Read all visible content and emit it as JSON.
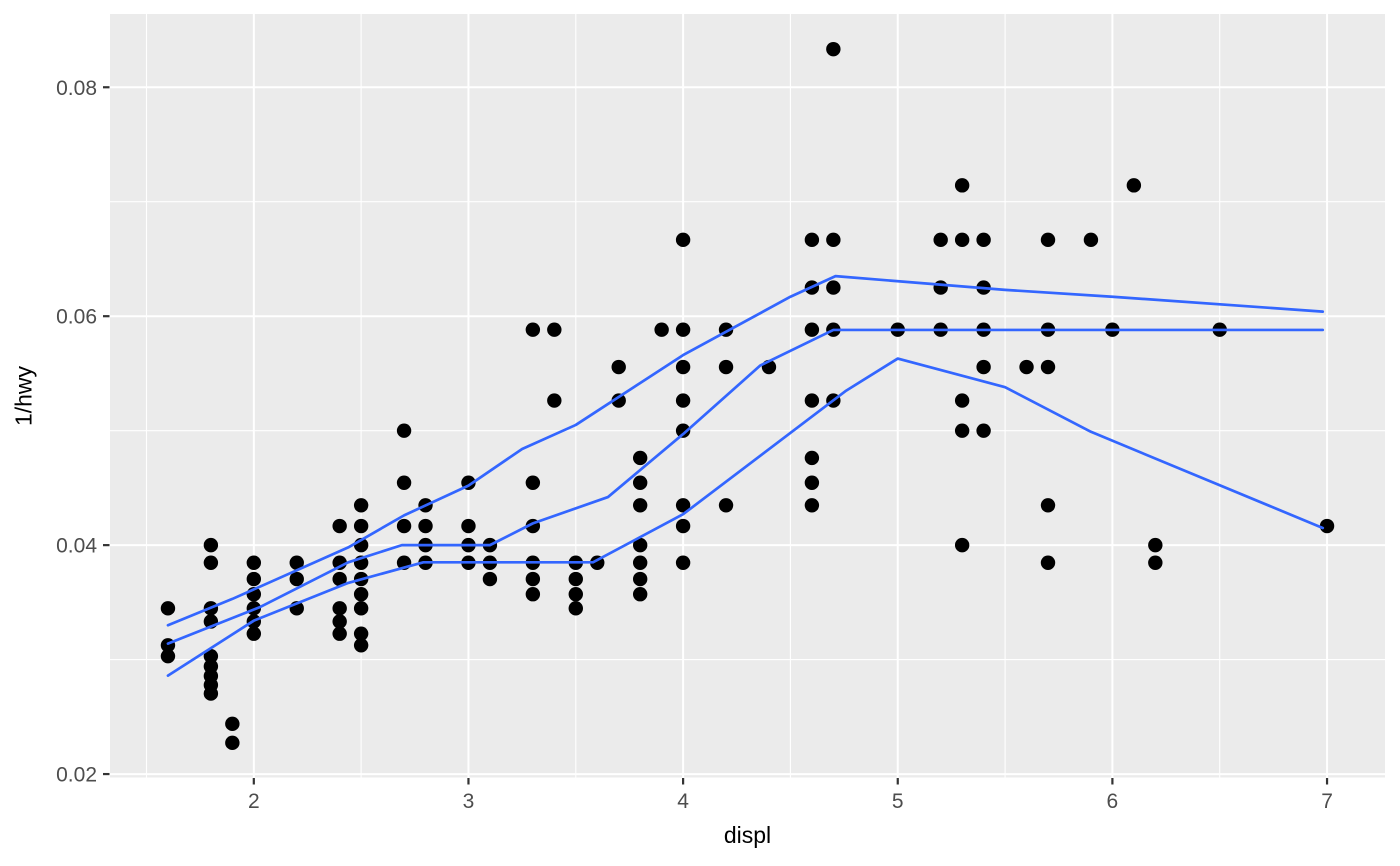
{
  "chart_data": {
    "type": "scatter",
    "title": "",
    "xlabel": "displ",
    "ylabel": "1/hwy",
    "legend": "none",
    "grid": "on",
    "x_domain": [
      1.33,
      7.27
    ],
    "y_domain": [
      0.0197,
      0.0864
    ],
    "x_major_ticks": [
      2,
      3,
      4,
      5,
      6,
      7
    ],
    "x_tick_labels": [
      "2",
      "3",
      "4",
      "5",
      "6",
      "7"
    ],
    "x_minor_ticks": [
      1.5,
      2.5,
      3.5,
      4.5,
      5.5,
      6.5
    ],
    "y_major_ticks": [
      0.02,
      0.04,
      0.06,
      0.08
    ],
    "y_tick_labels": [
      "0.02",
      "0.04",
      "0.06",
      "0.08"
    ],
    "y_minor_ticks": [
      0.03,
      0.05,
      0.07
    ],
    "points": [
      [
        1.6,
        0.03448
      ],
      [
        1.6,
        0.03125
      ],
      [
        1.6,
        0.0303
      ],
      [
        1.8,
        0.04
      ],
      [
        1.8,
        0.03846
      ],
      [
        1.8,
        0.03448
      ],
      [
        1.8,
        0.03333
      ],
      [
        1.8,
        0.0303
      ],
      [
        1.8,
        0.02941
      ],
      [
        1.8,
        0.02857
      ],
      [
        1.8,
        0.02778
      ],
      [
        1.8,
        0.02703
      ],
      [
        1.9,
        0.02439
      ],
      [
        1.9,
        0.02273
      ],
      [
        2.0,
        0.03846
      ],
      [
        2.0,
        0.03704
      ],
      [
        2.0,
        0.03571
      ],
      [
        2.0,
        0.03448
      ],
      [
        2.0,
        0.03333
      ],
      [
        2.0,
        0.03226
      ],
      [
        2.2,
        0.03846
      ],
      [
        2.2,
        0.03704
      ],
      [
        2.2,
        0.03448
      ],
      [
        2.4,
        0.04167
      ],
      [
        2.4,
        0.03846
      ],
      [
        2.4,
        0.03704
      ],
      [
        2.4,
        0.03448
      ],
      [
        2.4,
        0.03333
      ],
      [
        2.4,
        0.03226
      ],
      [
        2.5,
        0.04348
      ],
      [
        2.5,
        0.04167
      ],
      [
        2.5,
        0.04
      ],
      [
        2.5,
        0.03846
      ],
      [
        2.5,
        0.03704
      ],
      [
        2.5,
        0.03571
      ],
      [
        2.5,
        0.03448
      ],
      [
        2.5,
        0.03226
      ],
      [
        2.5,
        0.03125
      ],
      [
        2.7,
        0.05
      ],
      [
        2.7,
        0.04545
      ],
      [
        2.7,
        0.04167
      ],
      [
        2.7,
        0.03846
      ],
      [
        2.8,
        0.04348
      ],
      [
        2.8,
        0.04167
      ],
      [
        2.8,
        0.04
      ],
      [
        2.8,
        0.03846
      ],
      [
        3.0,
        0.04545
      ],
      [
        3.0,
        0.04167
      ],
      [
        3.0,
        0.04
      ],
      [
        3.0,
        0.03846
      ],
      [
        3.1,
        0.04
      ],
      [
        3.1,
        0.03846
      ],
      [
        3.1,
        0.03704
      ],
      [
        3.3,
        0.05882
      ],
      [
        3.3,
        0.04545
      ],
      [
        3.3,
        0.04167
      ],
      [
        3.3,
        0.03846
      ],
      [
        3.3,
        0.03704
      ],
      [
        3.3,
        0.03571
      ],
      [
        3.4,
        0.05882
      ],
      [
        3.4,
        0.05263
      ],
      [
        3.5,
        0.03846
      ],
      [
        3.5,
        0.03704
      ],
      [
        3.5,
        0.03571
      ],
      [
        3.5,
        0.03448
      ],
      [
        3.6,
        0.03846
      ],
      [
        3.7,
        0.05556
      ],
      [
        3.7,
        0.05263
      ],
      [
        3.8,
        0.04762
      ],
      [
        3.8,
        0.04545
      ],
      [
        3.8,
        0.04348
      ],
      [
        3.8,
        0.04
      ],
      [
        3.8,
        0.03846
      ],
      [
        3.8,
        0.03704
      ],
      [
        3.8,
        0.03571
      ],
      [
        3.9,
        0.05882
      ],
      [
        4.0,
        0.06667
      ],
      [
        4.0,
        0.05882
      ],
      [
        4.0,
        0.05556
      ],
      [
        4.0,
        0.05263
      ],
      [
        4.0,
        0.05
      ],
      [
        4.0,
        0.04348
      ],
      [
        4.0,
        0.04167
      ],
      [
        4.0,
        0.03846
      ],
      [
        4.2,
        0.05882
      ],
      [
        4.2,
        0.05556
      ],
      [
        4.2,
        0.04348
      ],
      [
        4.4,
        0.05556
      ],
      [
        4.6,
        0.06667
      ],
      [
        4.6,
        0.0625
      ],
      [
        4.6,
        0.05882
      ],
      [
        4.6,
        0.05263
      ],
      [
        4.6,
        0.04762
      ],
      [
        4.6,
        0.04545
      ],
      [
        4.6,
        0.04348
      ],
      [
        4.7,
        0.08333
      ],
      [
        4.7,
        0.06667
      ],
      [
        4.7,
        0.0625
      ],
      [
        4.7,
        0.05882
      ],
      [
        4.7,
        0.05263
      ],
      [
        5.0,
        0.05882
      ],
      [
        5.2,
        0.06667
      ],
      [
        5.2,
        0.0625
      ],
      [
        5.2,
        0.05882
      ],
      [
        5.3,
        0.07143
      ],
      [
        5.3,
        0.06667
      ],
      [
        5.3,
        0.05263
      ],
      [
        5.3,
        0.05
      ],
      [
        5.3,
        0.04
      ],
      [
        5.4,
        0.06667
      ],
      [
        5.4,
        0.0625
      ],
      [
        5.4,
        0.05882
      ],
      [
        5.4,
        0.05556
      ],
      [
        5.4,
        0.05
      ],
      [
        5.6,
        0.05556
      ],
      [
        5.7,
        0.06667
      ],
      [
        5.7,
        0.05882
      ],
      [
        5.7,
        0.05556
      ],
      [
        5.7,
        0.04348
      ],
      [
        5.7,
        0.03846
      ],
      [
        5.9,
        0.06667
      ],
      [
        6.0,
        0.05882
      ],
      [
        6.1,
        0.07143
      ],
      [
        6.2,
        0.04
      ],
      [
        6.2,
        0.03846
      ],
      [
        6.5,
        0.05882
      ],
      [
        7.0,
        0.04167
      ]
    ],
    "quantile_lines": [
      {
        "name": "upper-quartile-line",
        "quantile": 0.75,
        "points": [
          [
            1.6,
            0.033
          ],
          [
            1.9,
            0.0353
          ],
          [
            2.44,
            0.0398
          ],
          [
            2.7,
            0.0426
          ],
          [
            3.0,
            0.0452
          ],
          [
            3.25,
            0.0484
          ],
          [
            3.5,
            0.0505
          ],
          [
            4.0,
            0.0566
          ],
          [
            4.5,
            0.0617
          ],
          [
            4.71,
            0.0635
          ],
          [
            5.5,
            0.0623
          ],
          [
            6.0,
            0.0617
          ],
          [
            6.98,
            0.0604
          ]
        ]
      },
      {
        "name": "median-line",
        "quantile": 0.5,
        "points": [
          [
            1.6,
            0.0314
          ],
          [
            2.03,
            0.0346
          ],
          [
            2.44,
            0.0385
          ],
          [
            2.69,
            0.04
          ],
          [
            3.1,
            0.04
          ],
          [
            3.3,
            0.0419
          ],
          [
            3.65,
            0.0442
          ],
          [
            4.0,
            0.0497
          ],
          [
            4.36,
            0.0557
          ],
          [
            4.7,
            0.0588
          ],
          [
            6.98,
            0.0588
          ]
        ]
      },
      {
        "name": "lower-quartile-line",
        "quantile": 0.25,
        "points": [
          [
            1.6,
            0.0286
          ],
          [
            2.0,
            0.0334
          ],
          [
            2.44,
            0.0367
          ],
          [
            2.79,
            0.0385
          ],
          [
            3.58,
            0.0385
          ],
          [
            4.0,
            0.0427
          ],
          [
            4.76,
            0.0535
          ],
          [
            5.0,
            0.0563
          ],
          [
            5.5,
            0.0538
          ],
          [
            5.9,
            0.0499
          ],
          [
            6.98,
            0.0415
          ]
        ]
      }
    ],
    "colors": {
      "panel_background": "#EBEBEB",
      "gridline": "#FFFFFF",
      "point": "#000000",
      "quantile_line": "#3366FF",
      "tick_label": "#4D4D4D",
      "tick_mark": "#333333",
      "axis_title": "#000000"
    }
  }
}
